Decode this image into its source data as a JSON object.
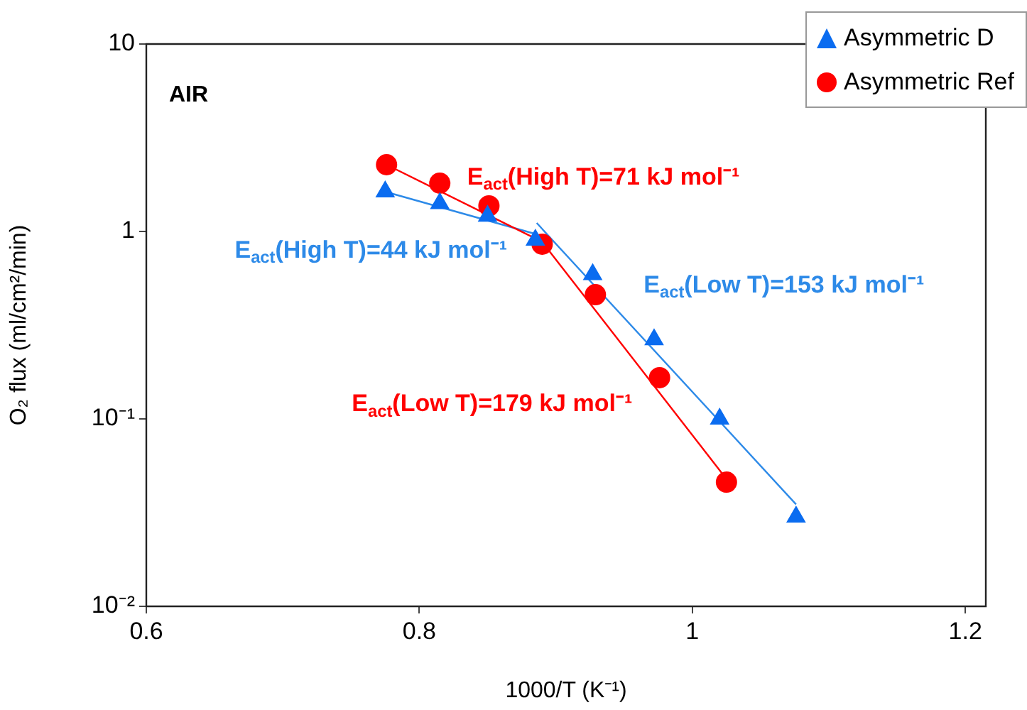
{
  "chart_data": {
    "type": "scatter",
    "xlabel": "1000/T (K⁻¹)",
    "ylabel": "O₂ flux (ml/cm²/min)",
    "annotations": [
      "AIR"
    ],
    "xlim": [
      0.6,
      1.215
    ],
    "xticks": [
      0.6,
      0.8,
      1,
      1.2
    ],
    "ylim": [
      0.01,
      10
    ],
    "yticks": [
      {
        "value": 0.01,
        "label": "10⁻²"
      },
      {
        "value": 0.1,
        "label": "10⁻¹"
      },
      1,
      10
    ],
    "log": "y",
    "grid": false,
    "legend": "top right",
    "series": [
      {
        "name": "Asymmetric D",
        "marker": "triangle",
        "color": "#0a6cf0",
        "x": [
          0.775,
          0.815,
          0.85,
          0.885,
          0.927,
          0.972,
          1.02,
          1.076
        ],
        "values": [
          1.63,
          1.41,
          1.21,
          0.9,
          0.59,
          0.265,
          0.1,
          0.03
        ]
      },
      {
        "name": "Asymmetric Ref",
        "marker": "circle",
        "color": "#ff0000",
        "x": [
          0.776,
          0.815,
          0.851,
          0.89,
          0.929,
          0.976,
          1.025
        ],
        "values": [
          2.27,
          1.81,
          1.37,
          0.855,
          0.46,
          0.166,
          0.046
        ]
      },
      {
        "name": "E$_{act}$(High T)=71 kJ mol⁻¹",
        "type": "line",
        "marker": "none",
        "color": "#ff0000",
        "x": [
          0.776,
          0.89
        ],
        "values": [
          2.27,
          0.88
        ]
      },
      {
        "name": "E$_{act}$(High T)=44 kJ mol⁻¹",
        "type": "line",
        "marker": "none",
        "color": "#2d8ae8",
        "x": [
          0.775,
          0.885
        ],
        "values": [
          1.63,
          0.97
        ]
      },
      {
        "name": "E$_{act}$(Low T)=153 kJ mol⁻¹",
        "type": "line",
        "marker": "none",
        "color": "#2d8ae8",
        "x": [
          0.886,
          1.076
        ],
        "values": [
          1.11,
          0.035
        ]
      },
      {
        "name": "E$_{act}$(Low T)=179 kJ mol⁻¹",
        "type": "line",
        "marker": "none",
        "color": "#ff0000",
        "x": [
          0.89,
          1.022
        ],
        "values": [
          0.88,
          0.051
        ]
      }
    ]
  }
}
